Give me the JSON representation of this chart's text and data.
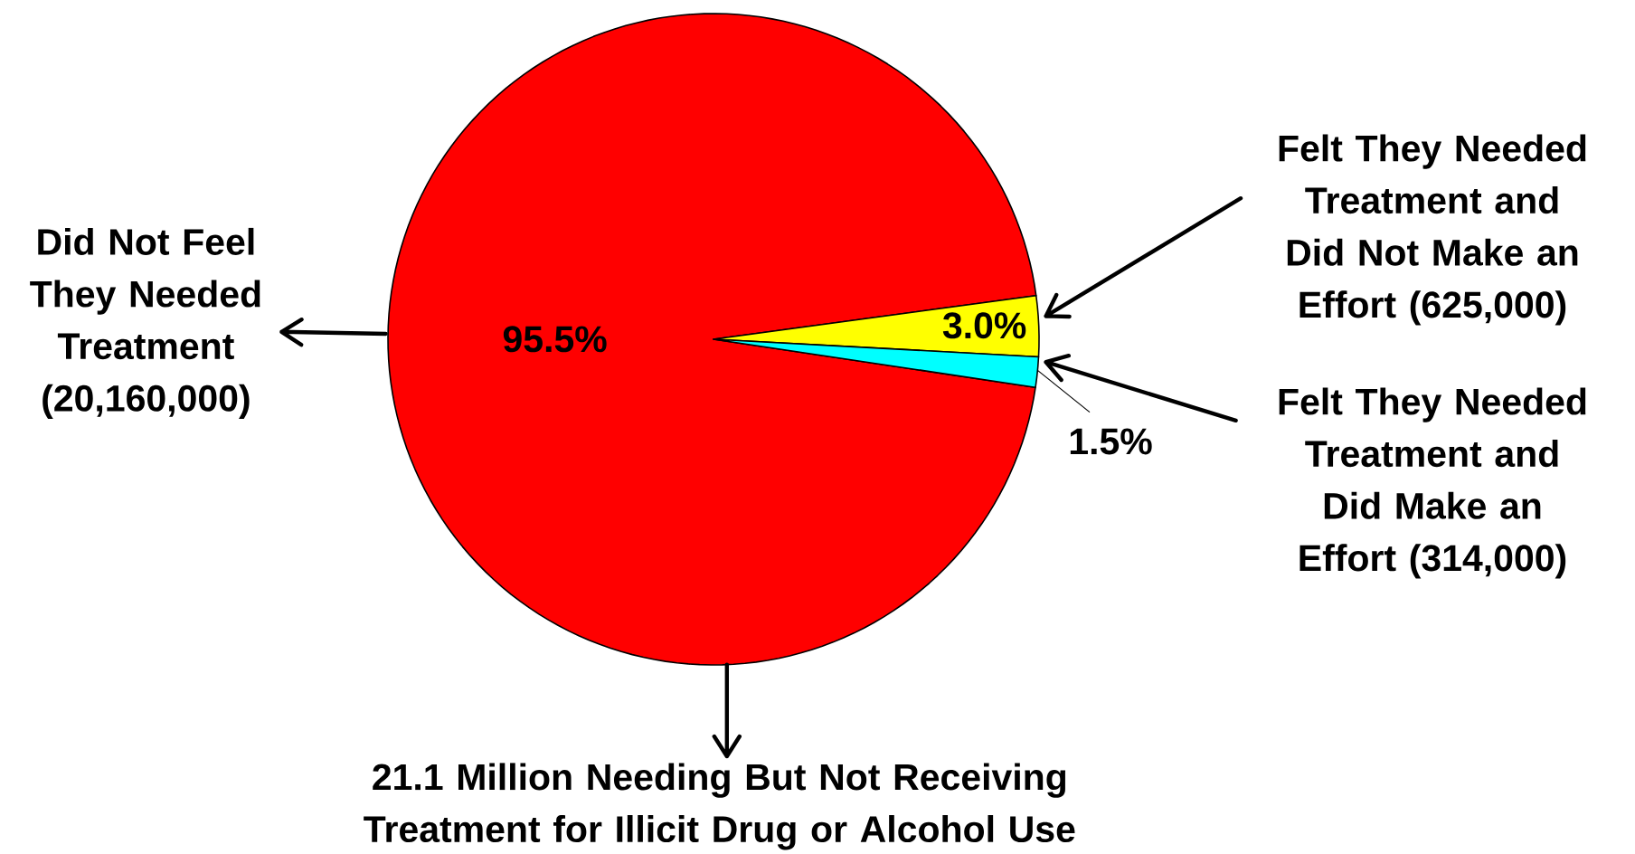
{
  "chart_data": {
    "type": "pie",
    "title": "21.1 Million Needing But Not Receiving Treatment for Illicit Drug or Alcohol Use",
    "categories": [
      "Did Not Feel They Needed Treatment (20,160,000)",
      "Felt They Needed Treatment and Did Not Make an Effort (625,000)",
      "Felt They Needed Treatment and Did Make an Effort (314,000)"
    ],
    "values": [
      95.5,
      3.0,
      1.5
    ],
    "colors": [
      "#ff0000",
      "#ffff00",
      "#00ffff"
    ],
    "value_labels": [
      "95.5%",
      "3.0%",
      "1.5%"
    ]
  }
}
